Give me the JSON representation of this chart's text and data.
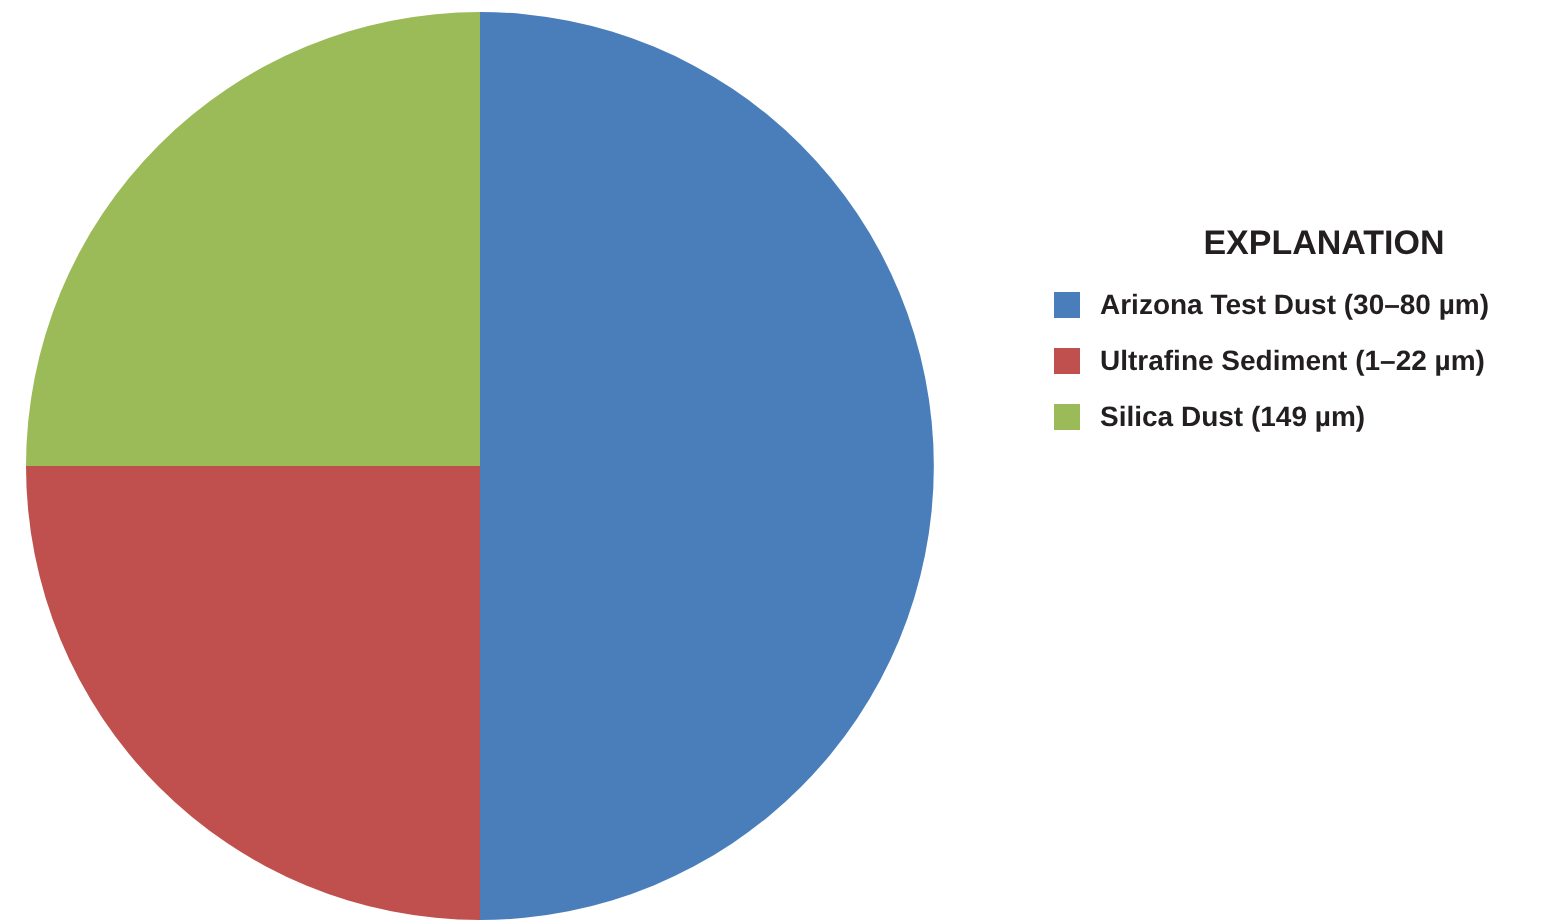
{
  "chart_data": {
    "type": "pie",
    "legend_title": "EXPLANATION",
    "categories": [
      "Arizona Test Dust (30–80 µm)",
      "Ultrafine Sediment (1–22 µm)",
      "Silica Dust (149 µm)"
    ],
    "values": [
      50,
      25,
      25
    ],
    "colors": [
      "#4a7ebb",
      "#c0504d",
      "#9bbb59"
    ],
    "legend": "right"
  }
}
